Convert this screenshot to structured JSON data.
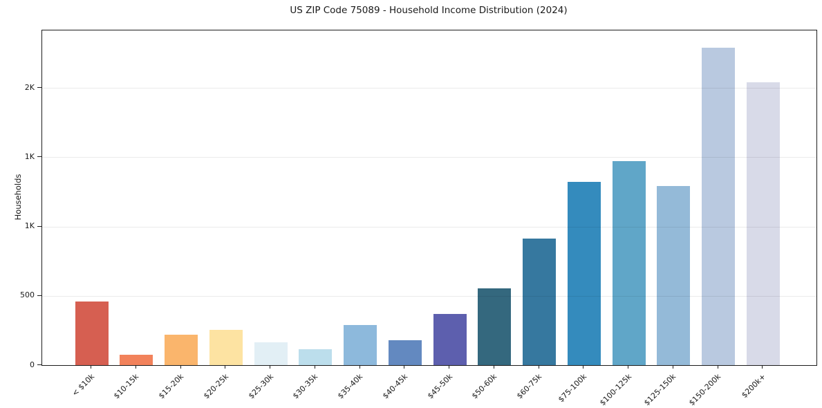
{
  "chart_data": {
    "type": "bar",
    "title": "US ZIP Code 75089 - Household Income Distribution (2024)",
    "xlabel": "",
    "ylabel": "Households",
    "categories": [
      "< $10k",
      "$10-15k",
      "$15-20k",
      "$20-25k",
      "$25-30k",
      "$30-35k",
      "$35-40k",
      "$40-45k",
      "$45-50k",
      "$50-60k",
      "$60-75k",
      "$75-100k",
      "$100-125k",
      "$125-150k",
      "$150-200k",
      "$200k+"
    ],
    "values": [
      460,
      75,
      220,
      255,
      165,
      115,
      290,
      180,
      370,
      555,
      915,
      1320,
      1470,
      1290,
      2290,
      2040
    ],
    "bar_colors": [
      "#d65f51",
      "#f2825b",
      "#fab56c",
      "#fde3a2",
      "#e2eff5",
      "#bcdeec",
      "#8db9dc",
      "#6389c0",
      "#5d5fae",
      "#34687e",
      "#36789f",
      "#348bbd",
      "#60a6c8",
      "#94bad8",
      "#b9c9e0",
      "#d8dae8"
    ],
    "y_ticks": [
      {
        "value": 0,
        "label": "0"
      },
      {
        "value": 500,
        "label": "500"
      },
      {
        "value": 1000,
        "label": "1K"
      },
      {
        "value": 1500,
        "label": "1K"
      },
      {
        "value": 2000,
        "label": "2K"
      }
    ],
    "ylim": [
      0,
      2415
    ],
    "grid": "horizontal",
    "gridline_color": "#e9e9e9",
    "legend_position": "none",
    "background_color": "#ffffff"
  }
}
